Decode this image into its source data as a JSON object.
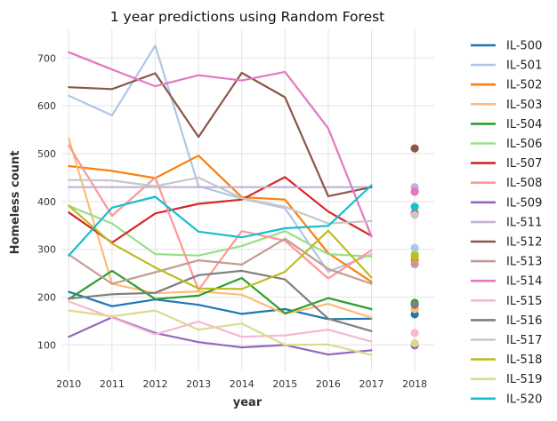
{
  "chart_data": {
    "type": "line",
    "title": "1 year predictions using Random Forest",
    "xlabel": "year",
    "ylabel": "Homeless count",
    "x": [
      2010,
      2011,
      2012,
      2013,
      2014,
      2015,
      2016,
      2017
    ],
    "prediction_x": 2018,
    "xticks": [
      2010,
      2011,
      2012,
      2013,
      2014,
      2015,
      2016,
      2017,
      2018
    ],
    "yticks": [
      100,
      200,
      300,
      400,
      500,
      600,
      700
    ],
    "xlim": [
      2009.85,
      2018.45
    ],
    "ylim": [
      45,
      760
    ],
    "grid": true,
    "legend_position": "outside-right",
    "series": [
      {
        "name": "IL-500",
        "color": "#1f77b4",
        "values": [
          211,
          181,
          195,
          184,
          165,
          175,
          154,
          155
        ],
        "prediction": 164
      },
      {
        "name": "IL-501",
        "color": "#aec7e8",
        "values": [
          621,
          580,
          726,
          432,
          406,
          386,
          253,
          290
        ],
        "prediction": 303
      },
      {
        "name": "IL-502",
        "color": "#ff7f0e",
        "values": [
          474,
          464,
          449,
          496,
          409,
          404,
          292,
          232
        ],
        "prediction": 278
      },
      {
        "name": "IL-503",
        "color": "#ffbb78",
        "values": [
          532,
          228,
          208,
          212,
          205,
          165,
          186,
          157
        ],
        "prediction": 175
      },
      {
        "name": "IL-504",
        "color": "#2ca02c",
        "values": [
          196,
          255,
          196,
          203,
          240,
          166,
          198,
          175
        ],
        "prediction": 188
      },
      {
        "name": "IL-506",
        "color": "#98df8a",
        "values": [
          391,
          354,
          290,
          287,
          307,
          338,
          290,
          285
        ],
        "prediction": 290
      },
      {
        "name": "IL-507",
        "color": "#d62728",
        "values": [
          377,
          314,
          375,
          395,
          404,
          451,
          379,
          328
        ],
        "prediction": 375
      },
      {
        "name": "IL-508",
        "color": "#ff9896",
        "values": [
          517,
          370,
          450,
          215,
          338,
          318,
          239,
          298
        ],
        "prediction": 420
      },
      {
        "name": "IL-509",
        "color": "#9467bd",
        "values": [
          117,
          158,
          125,
          106,
          95,
          100,
          80,
          89
        ],
        "prediction": 99
      },
      {
        "name": "IL-511",
        "color": "#c5b0d5",
        "values": [
          430,
          430,
          430,
          430,
          430,
          430,
          430,
          430
        ],
        "prediction": 430
      },
      {
        "name": "IL-512",
        "color": "#8c564b",
        "values": [
          639,
          635,
          668,
          535,
          669,
          618,
          411,
          430
        ],
        "prediction": 511
      },
      {
        "name": "IL-513",
        "color": "#c49c94",
        "values": [
          289,
          228,
          252,
          277,
          268,
          322,
          259,
          228
        ],
        "prediction": 269
      },
      {
        "name": "IL-514",
        "color": "#e377c2",
        "values": [
          712,
          676,
          641,
          664,
          653,
          671,
          553,
          327
        ],
        "prediction": 421
      },
      {
        "name": "IL-515",
        "color": "#f7b6d2",
        "values": [
          191,
          157,
          122,
          149,
          117,
          120,
          132,
          107
        ],
        "prediction": 125
      },
      {
        "name": "IL-516",
        "color": "#7f7f7f",
        "values": [
          197,
          206,
          209,
          246,
          255,
          237,
          155,
          129
        ],
        "prediction": 184
      },
      {
        "name": "IL-517",
        "color": "#c7c7c7",
        "values": [
          445,
          444,
          432,
          450,
          407,
          389,
          354,
          359
        ],
        "prediction": 372
      },
      {
        "name": "IL-518",
        "color": "#bcbd22",
        "values": [
          391,
          312,
          262,
          218,
          217,
          253,
          339,
          241
        ],
        "prediction": 286
      },
      {
        "name": "IL-519",
        "color": "#dbdb8d",
        "values": [
          172,
          160,
          172,
          132,
          145,
          100,
          101,
          79
        ],
        "prediction": 104
      },
      {
        "name": "IL-520",
        "color": "#17becf",
        "values": [
          287,
          387,
          410,
          337,
          325,
          344,
          349,
          434
        ],
        "prediction": 389
      }
    ]
  }
}
